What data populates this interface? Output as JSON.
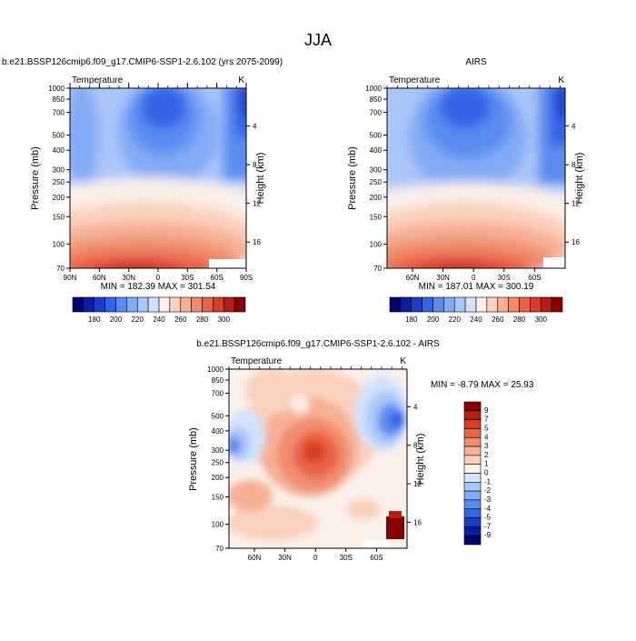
{
  "page_title": "JJA",
  "colorbar_top": [
    "180",
    "190",
    "200",
    "210",
    "220",
    "230",
    "240",
    "250",
    "260",
    "270",
    "280",
    "290",
    "300"
  ],
  "colors": [
    "#00006e",
    "#0a1ea0",
    "#1e3cc8",
    "#3264e6",
    "#5a8cf0",
    "#82aaf5",
    "#aac6f8",
    "#d2e3fa",
    "#faf0ea",
    "#fad2be",
    "#f5b095",
    "#f08c6e",
    "#e86447",
    "#d83c24",
    "#b41e12",
    "#820000"
  ],
  "chart_data": [
    {
      "type": "heatmap",
      "title": "b.e21.BSSP126cmip6.f09_g17.CMIP6-SSP1-2.6.102 (yrs 2075-2099)",
      "left_label": "Temperature",
      "right_label": "K",
      "ylabel": "Pressure (mb)",
      "y2label": "Height (km)",
      "xticks": [
        "90N",
        "60N",
        "30N",
        "0",
        "30S",
        "60S",
        "90S"
      ],
      "yticks": [
        "70",
        "100",
        "150",
        "200",
        "250",
        "300",
        "400",
        "500",
        "700",
        "850",
        "1000"
      ],
      "y2ticks": [
        "16",
        "12",
        "8",
        "4"
      ],
      "stats": "MIN = 182.39   MAX = 301.54",
      "levels": [
        180,
        190,
        200,
        210,
        220,
        230,
        240,
        250,
        260,
        270,
        280,
        290,
        300
      ]
    },
    {
      "type": "heatmap",
      "title": "AIRS",
      "left_label": "Temperature",
      "right_label": "K",
      "ylabel": "Pressure (mb)",
      "y2label": "Height (km)",
      "xticks": [
        "60N",
        "30N",
        "0",
        "30S",
        "60S"
      ],
      "yticks": [
        "70",
        "100",
        "150",
        "200",
        "250",
        "300",
        "400",
        "500",
        "700",
        "850",
        "1000"
      ],
      "y2ticks": [
        "16",
        "12",
        "8",
        "4"
      ],
      "stats": "MIN = 187.01   MAX = 300.19",
      "levels": [
        180,
        190,
        200,
        210,
        220,
        230,
        240,
        250,
        260,
        270,
        280,
        290,
        300
      ]
    },
    {
      "type": "heatmap",
      "title": "b.e21.BSSP126cmip6.f09_g17.CMIP6-SSP1-2.6.102 - AIRS",
      "left_label": "Temperature",
      "right_label": "K",
      "ylabel": "Pressure (mb)",
      "y2label": "Height (km)",
      "xticks": [
        "60N",
        "30N",
        "0",
        "30S",
        "60S"
      ],
      "yticks": [
        "70",
        "100",
        "150",
        "200",
        "250",
        "300",
        "400",
        "500",
        "700",
        "850",
        "1000"
      ],
      "y2ticks": [
        "16",
        "12",
        "8",
        "4"
      ],
      "stats": "MIN =  -8.79   MAX =  25.93",
      "colorbar_labels": [
        "9",
        "7",
        "5",
        "4",
        "3",
        "2",
        "1",
        "0",
        "-1",
        "-2",
        "-3",
        "-4",
        "-5",
        "-7",
        "-9"
      ]
    }
  ]
}
